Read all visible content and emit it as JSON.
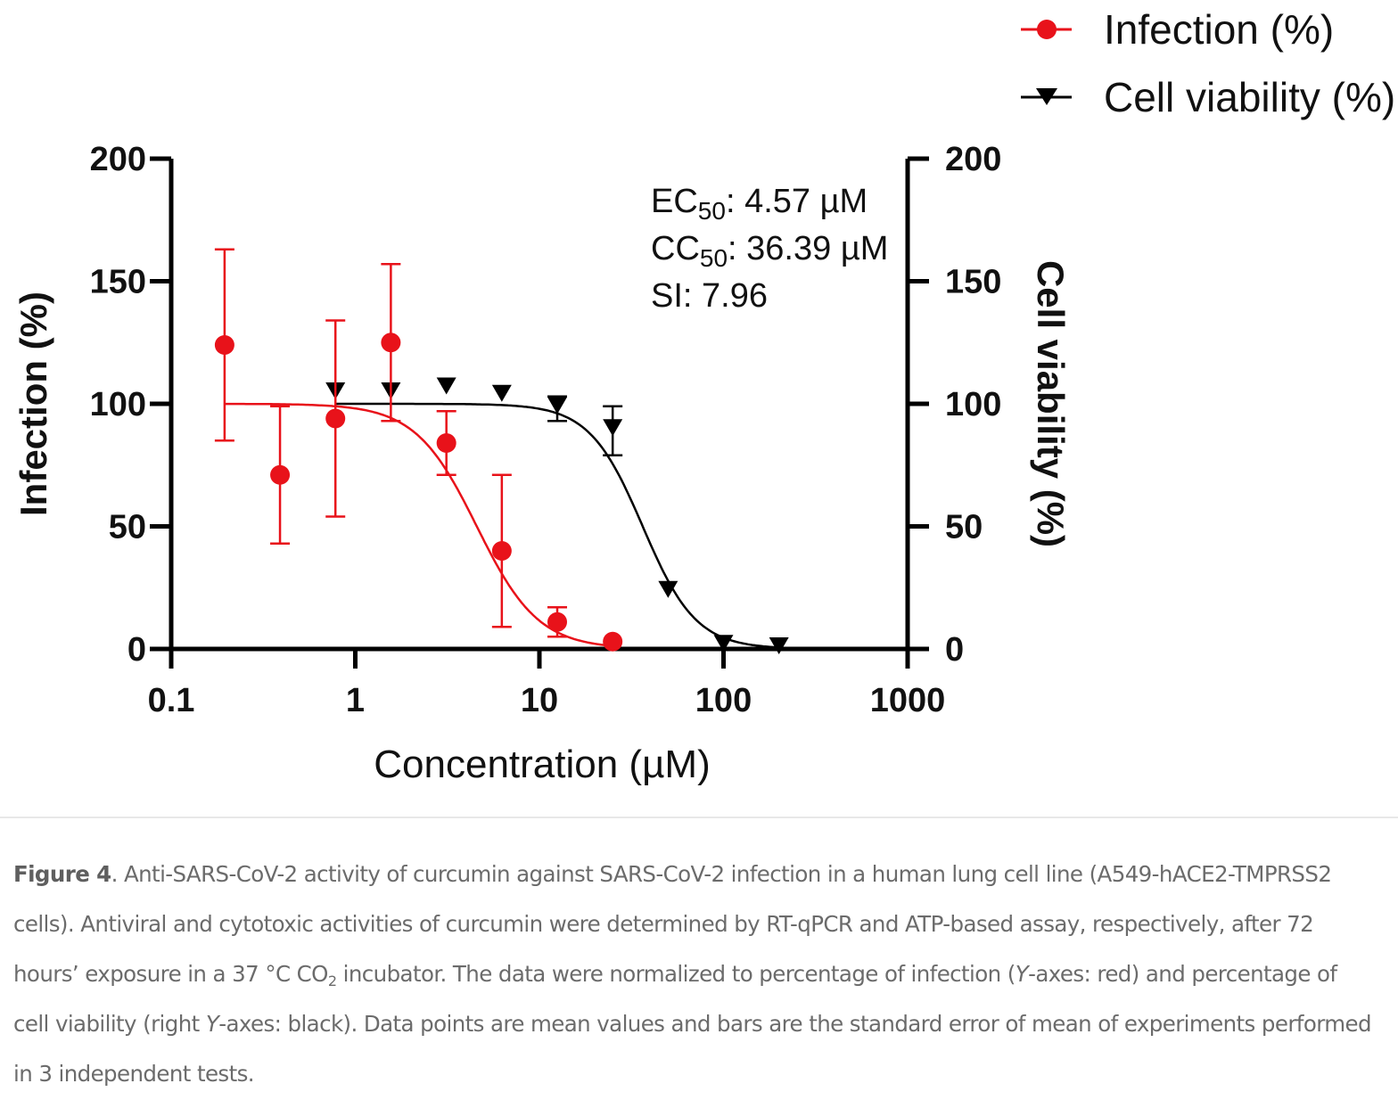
{
  "chart_data": {
    "type": "scatter",
    "title": "",
    "xlabel": "Concentration (µM)",
    "ylabel": "Infection (%)",
    "ylabel_right": "Cell viability (%)",
    "xscale": "log",
    "xlim": [
      0.1,
      1000
    ],
    "ylim": [
      0,
      200
    ],
    "ylim_right": [
      0,
      200
    ],
    "x_ticks": [
      "0.1",
      "1",
      "10",
      "100",
      "1000"
    ],
    "x_tick_values": [
      0.1,
      1,
      10,
      100,
      1000
    ],
    "y_ticks": [
      "0",
      "50",
      "100",
      "150",
      "200"
    ],
    "y_tick_values": [
      0,
      50,
      100,
      150,
      200
    ],
    "grid": false,
    "legend_position": "top-right",
    "series": [
      {
        "name": "Infection (%)",
        "color": "#e8121a",
        "marker": "circle",
        "axis": "left",
        "x": [
          0.195,
          0.39,
          0.78,
          1.56,
          3.125,
          6.25,
          12.5,
          25
        ],
        "y": [
          124,
          71,
          94,
          125,
          84,
          40,
          11,
          3
        ],
        "error": [
          39,
          28,
          40,
          32,
          13,
          31,
          6,
          0
        ],
        "fit": {
          "type": "sigmoid",
          "top": 100,
          "bottom": 0,
          "ec50": 4.57,
          "hill": 2.6
        }
      },
      {
        "name": "Cell viability (%)",
        "color": "#000000",
        "marker": "triangle-down",
        "axis": "right",
        "x": [
          0.78,
          1.56,
          3.125,
          6.25,
          12.5,
          25,
          50,
          100,
          200
        ],
        "y": [
          104,
          104,
          106,
          103,
          98,
          89,
          23,
          1,
          0
        ],
        "error": [
          0,
          0,
          0,
          0,
          5,
          10,
          0,
          0,
          0
        ],
        "fit": {
          "type": "sigmoid",
          "top": 100,
          "bottom": 0,
          "ec50": 36.39,
          "hill": 3.0
        }
      }
    ],
    "annotations": [
      {
        "prefix": "EC",
        "sub": "50",
        "text": ": 4.57 µM"
      },
      {
        "prefix": "CC",
        "sub": "50",
        "text": ": 36.39 µM"
      },
      {
        "prefix": "SI",
        "sub": "",
        "text": ": 7.96"
      }
    ]
  },
  "caption": {
    "label": "Figure 4",
    "part1": ". Anti-SARS-CoV-2 activity of curcumin against SARS-CoV-2 infection in a human lung cell line (A549-hACE2-TMPRSS2 cells). Antiviral and cytotoxic activities of curcumin were determined by RT-qPCR and ATP-based assay, respectively, after 72 hours’ exposure in a 37 °C CO",
    "sub": "2",
    "part2": " incubator. The data were normalized to percentage of infection (",
    "italic1": "Y",
    "part3": "-axes: red) and percentage of cell viability (right ",
    "italic2": "Y",
    "part4": "-axes: black). Data points are mean values and bars are the standard error of mean of experiments performed in 3 independent tests."
  }
}
